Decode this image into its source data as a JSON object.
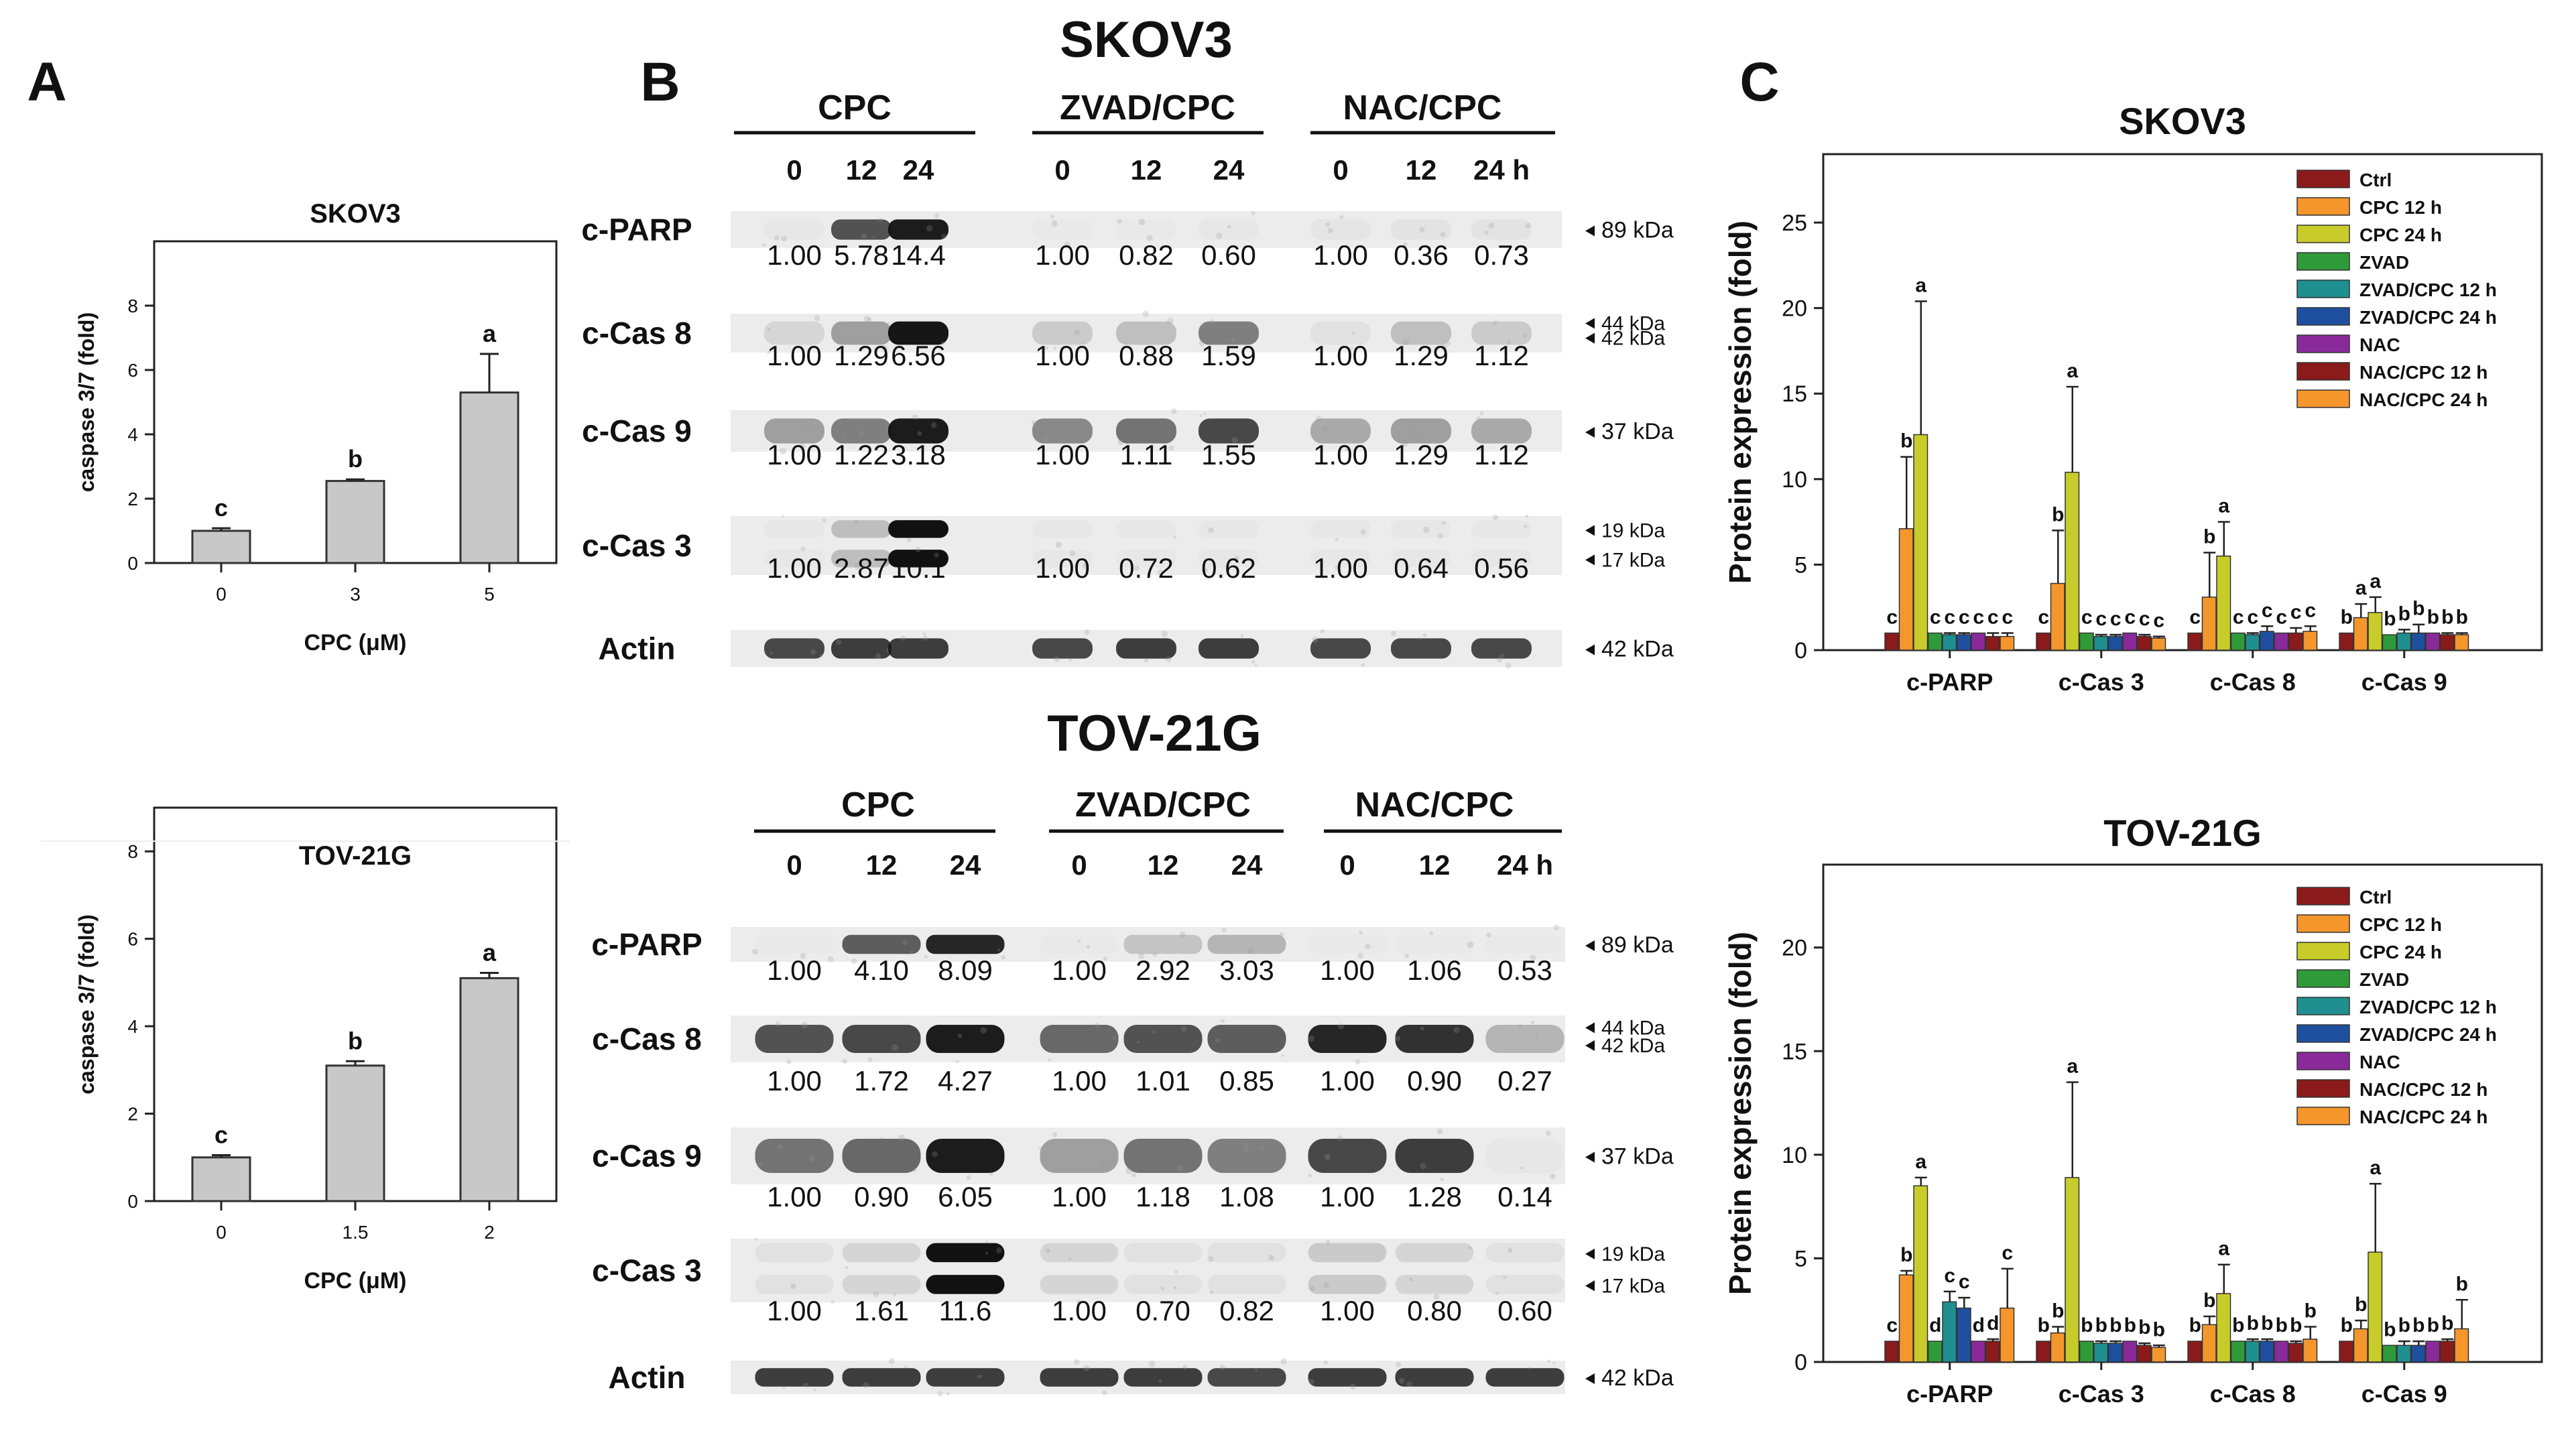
{
  "panels": {
    "a": "A",
    "b": "B",
    "c": "C"
  },
  "panel_b": {
    "skov3": {
      "title": "SKOV3",
      "groups": [
        "CPC",
        "ZVAD/CPC",
        "NAC/CPC"
      ],
      "times": [
        "0",
        "12",
        "24",
        "0",
        "12",
        "24",
        "0",
        "12",
        "24 h"
      ],
      "rows": [
        {
          "label": "c-PARP",
          "mw": [
            "89 kDa"
          ],
          "values": [
            "1.00",
            "5.78",
            "14.4",
            "1.00",
            "0.82",
            "0.60",
            "1.00",
            "0.36",
            "0.73"
          ]
        },
        {
          "label": "c-Cas 8",
          "mw": [
            "44 kDa",
            "42 kDa"
          ],
          "values": [
            "1.00",
            "1.29",
            "6.56",
            "1.00",
            "0.88",
            "1.59",
            "1.00",
            "1.29",
            "1.12"
          ]
        },
        {
          "label": "c-Cas 9",
          "mw": [
            "37 kDa"
          ],
          "values": [
            "1.00",
            "1.22",
            "3.18",
            "1.00",
            "1.11",
            "1.55",
            "1.00",
            "1.29",
            "1.12"
          ]
        },
        {
          "label": "c-Cas 3",
          "mw": [
            "19 kDa",
            "17 kDa"
          ],
          "values": [
            "1.00",
            "2.87",
            "10.1",
            "1.00",
            "0.72",
            "0.62",
            "1.00",
            "0.64",
            "0.56"
          ]
        },
        {
          "label": "Actin",
          "mw": [
            "42 kDa"
          ],
          "values": []
        }
      ]
    },
    "tov": {
      "title": "TOV-21G",
      "groups": [
        "CPC",
        "ZVAD/CPC",
        "NAC/CPC"
      ],
      "times": [
        "0",
        "12",
        "24",
        "0",
        "12",
        "24",
        "0",
        "12",
        "24 h"
      ],
      "rows": [
        {
          "label": "c-PARP",
          "mw": [
            "89 kDa"
          ],
          "values": [
            "1.00",
            "4.10",
            "8.09",
            "1.00",
            "2.92",
            "3.03",
            "1.00",
            "1.06",
            "0.53"
          ]
        },
        {
          "label": "c-Cas 8",
          "mw": [
            "44 kDa",
            "42 kDa"
          ],
          "values": [
            "1.00",
            "1.72",
            "4.27",
            "1.00",
            "1.01",
            "0.85",
            "1.00",
            "0.90",
            "0.27"
          ]
        },
        {
          "label": "c-Cas 9",
          "mw": [
            "37 kDa"
          ],
          "values": [
            "1.00",
            "0.90",
            "6.05",
            "1.00",
            "1.18",
            "1.08",
            "1.00",
            "1.28",
            "0.14"
          ]
        },
        {
          "label": "c-Cas 3",
          "mw": [
            "19 kDa",
            "17 kDa"
          ],
          "values": [
            "1.00",
            "1.61",
            "11.6",
            "1.00",
            "0.70",
            "0.82",
            "1.00",
            "0.80",
            "0.60"
          ]
        },
        {
          "label": "Actin",
          "mw": [
            "42 kDa"
          ],
          "values": []
        }
      ]
    }
  },
  "legend_colors": [
    "#8b1a1a",
    "#f5962d",
    "#c8cc2a",
    "#2f9a3a",
    "#1f8f8f",
    "#1f4f9f",
    "#8a2a9a",
    "#8b1a1a",
    "#f5962d"
  ],
  "chart_data": [
    {
      "id": "a_skov3",
      "type": "bar",
      "title": "SKOV3",
      "xlabel": "CPC (μM)",
      "ylabel": "caspase 3/7 (fold)",
      "categories": [
        "0",
        "3",
        "5"
      ],
      "values": [
        1.0,
        2.55,
        5.3
      ],
      "errors": [
        0.08,
        0.05,
        1.2
      ],
      "letters": [
        "c",
        "b",
        "a"
      ],
      "ylim": [
        0,
        10
      ],
      "yticks": [
        "0",
        "2",
        "4",
        "6",
        "8"
      ]
    },
    {
      "id": "a_tov",
      "type": "bar",
      "title": "TOV-21G",
      "xlabel": "CPC (μM)",
      "ylabel": "caspase 3/7 (fold)",
      "categories": [
        "0",
        "1.5",
        "2"
      ],
      "values": [
        1.0,
        3.1,
        5.1
      ],
      "errors": [
        0.05,
        0.1,
        0.12
      ],
      "letters": [
        "c",
        "b",
        "a"
      ],
      "ylim": [
        0,
        9
      ],
      "yticks": [
        "0",
        "2",
        "4",
        "6",
        "8"
      ]
    },
    {
      "id": "c_skov3",
      "type": "bar",
      "title": "SKOV3",
      "ylabel": "Protein expression (fold)",
      "ylim": [
        0,
        29
      ],
      "yticks": [
        "0",
        "5",
        "10",
        "15",
        "20",
        "25"
      ],
      "categories": [
        "c-PARP",
        "c-Cas 3",
        "c-Cas 8",
        "c-Cas 9"
      ],
      "legend": [
        "Ctrl",
        "CPC 12 h",
        "CPC 24 h",
        "ZVAD",
        "ZVAD/CPC 12 h",
        "ZVAD/CPC 24 h",
        "NAC",
        "NAC/CPC 12 h",
        "NAC/CPC 24 h"
      ],
      "groups": [
        {
          "values": [
            1.0,
            7.1,
            12.6,
            1.0,
            0.9,
            0.9,
            1.0,
            0.8,
            0.8
          ],
          "errors": [
            0,
            4.2,
            7.8,
            0,
            0.1,
            0.1,
            0,
            0.2,
            0.2
          ],
          "letters": [
            "c",
            "b",
            "a",
            "c",
            "c",
            "c",
            "c",
            "c",
            "c"
          ]
        },
        {
          "values": [
            1.0,
            3.9,
            10.4,
            1.0,
            0.8,
            0.8,
            1.0,
            0.8,
            0.7
          ],
          "errors": [
            0,
            3.1,
            5.0,
            0,
            0.1,
            0.1,
            0,
            0.1,
            0.1
          ],
          "letters": [
            "c",
            "b",
            "a",
            "c",
            "c",
            "c",
            "c",
            "c",
            "c"
          ]
        },
        {
          "values": [
            1.0,
            3.1,
            5.5,
            1.0,
            0.9,
            1.1,
            1.0,
            1.0,
            1.1
          ],
          "errors": [
            0,
            2.6,
            2.0,
            0,
            0.1,
            0.3,
            0,
            0.3,
            0.3
          ],
          "letters": [
            "c",
            "b",
            "a",
            "c",
            "c",
            "c",
            "c",
            "c",
            "c"
          ]
        },
        {
          "values": [
            1.0,
            1.9,
            2.2,
            0.9,
            1.0,
            1.0,
            1.0,
            0.9,
            0.9
          ],
          "errors": [
            0,
            0.8,
            0.9,
            0,
            0.2,
            0.5,
            0,
            0.1,
            0.1
          ],
          "letters": [
            "b",
            "a",
            "a",
            "b",
            "b",
            "b",
            "b",
            "b",
            "b"
          ]
        }
      ]
    },
    {
      "id": "c_tov",
      "type": "bar",
      "title": "TOV-21G",
      "ylabel": "Protein expression (fold)",
      "ylim": [
        0,
        24
      ],
      "yticks": [
        "0",
        "5",
        "10",
        "15",
        "20"
      ],
      "categories": [
        "c-PARP",
        "c-Cas 3",
        "c-Cas 8",
        "c-Cas 9"
      ],
      "legend": [
        "Ctrl",
        "CPC 12 h",
        "CPC 24 h",
        "ZVAD",
        "ZVAD/CPC 12 h",
        "ZVAD/CPC 24 h",
        "NAC",
        "NAC/CPC 12 h",
        "NAC/CPC 24 h"
      ],
      "groups": [
        {
          "values": [
            1.0,
            4.2,
            8.5,
            1.0,
            2.9,
            2.6,
            1.0,
            1.0,
            2.6
          ],
          "errors": [
            0,
            0.2,
            0.4,
            0,
            0.5,
            0.5,
            0,
            0.1,
            1.9
          ],
          "letters": [
            "c",
            "b",
            "a",
            "d",
            "c",
            "c",
            "d",
            "d",
            "c"
          ]
        },
        {
          "values": [
            1.0,
            1.4,
            8.9,
            1.0,
            0.9,
            0.9,
            1.0,
            0.8,
            0.7
          ],
          "errors": [
            0,
            0.3,
            4.6,
            0,
            0.1,
            0.1,
            0,
            0.1,
            0.1
          ],
          "letters": [
            "b",
            "b",
            "a",
            "b",
            "b",
            "b",
            "b",
            "b",
            "b"
          ]
        },
        {
          "values": [
            1.0,
            1.8,
            3.3,
            1.0,
            1.0,
            1.0,
            1.0,
            0.9,
            1.1
          ],
          "errors": [
            0,
            0.4,
            1.4,
            0,
            0.1,
            0.1,
            0,
            0.1,
            0.6
          ],
          "letters": [
            "b",
            "b",
            "a",
            "b",
            "b",
            "b",
            "b",
            "b",
            "b"
          ]
        },
        {
          "values": [
            1.0,
            1.6,
            5.3,
            0.8,
            0.8,
            0.8,
            1.0,
            1.0,
            1.6
          ],
          "errors": [
            0,
            0.4,
            3.3,
            0,
            0.2,
            0.2,
            0,
            0.1,
            1.4
          ],
          "letters": [
            "b",
            "b",
            "a",
            "b",
            "b",
            "b",
            "b",
            "b",
            "b"
          ]
        }
      ]
    }
  ]
}
